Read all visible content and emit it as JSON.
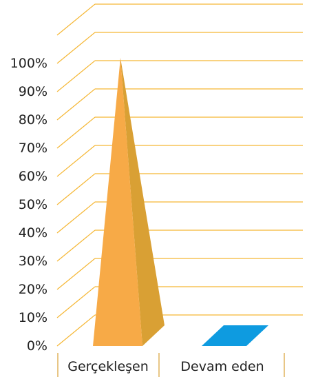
{
  "chart_data": {
    "type": "bar",
    "bar_shape": "pyramid",
    "categories": [
      "Gerçekleşen",
      "Devam eden"
    ],
    "values": [
      100,
      0
    ],
    "y_ticks": [
      "0%",
      "10%",
      "20%",
      "30%",
      "40%",
      "50%",
      "60%",
      "70%",
      "80%",
      "90%",
      "100%"
    ],
    "ylim": [
      0,
      110
    ],
    "grid": true,
    "title": "",
    "xlabel": "",
    "ylabel": ""
  },
  "colors": {
    "grid": "#F5B735",
    "bar1_front": "#F7AA47",
    "bar1_side": "#D9A034",
    "bar2": "#0E9BE0",
    "axis": "#D9A034"
  }
}
